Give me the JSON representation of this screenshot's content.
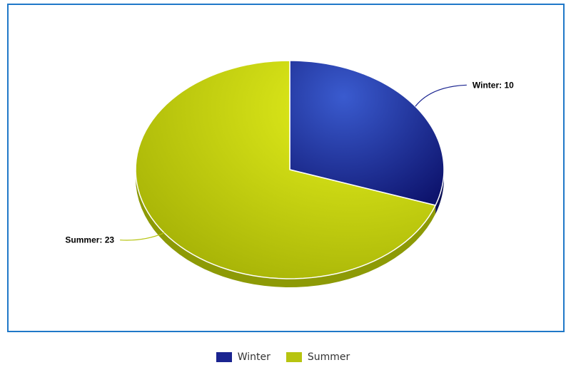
{
  "chart_data": {
    "type": "pie",
    "categories": [
      "Winter",
      "Summer"
    ],
    "values": [
      10,
      23
    ],
    "labels": [
      "Winter: 10",
      "Summer: 23"
    ],
    "colors": [
      "#1a2490",
      "#b7c410"
    ],
    "legend_position": "bottom-center",
    "style": "3d"
  },
  "legend": {
    "items": [
      {
        "label": "Winter",
        "color": "#1a2490"
      },
      {
        "label": "Summer",
        "color": "#b7c410"
      }
    ]
  }
}
